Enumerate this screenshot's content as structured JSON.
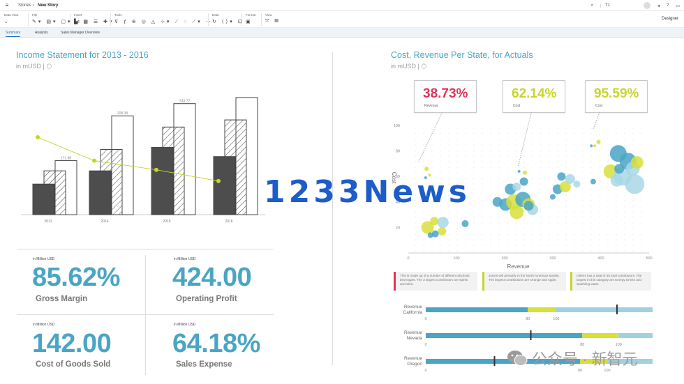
{
  "app": {
    "breadcrumb": [
      "Stories",
      "New Story"
    ],
    "search_value": "T1",
    "designer_label": "Designer"
  },
  "toolbar": {
    "groups": [
      {
        "label": "Data View"
      },
      {
        "label": "File"
      },
      {
        "label": "Insert"
      },
      {
        "label": "Tools"
      },
      {
        "label": "Data"
      },
      {
        "label": "Format"
      },
      {
        "label": "View"
      }
    ]
  },
  "tabs": [
    "Summary",
    "Analysis",
    "Sales Manager Overview"
  ],
  "income": {
    "title": "Income Statement for 2013 - 2016",
    "subtitle": "in mUSD |",
    "chart_data": {
      "type": "bar",
      "categories": [
        "2013",
        "2014",
        "2015",
        "2016"
      ],
      "bar_labels": [
        "171.88",
        "208.38",
        "243.72",
        ""
      ],
      "series": [
        {
          "values": [
            30,
            43,
            66,
            57
          ]
        },
        {
          "values": [
            43,
            64,
            86,
            93
          ]
        },
        {
          "values": [
            53,
            97,
            109,
            115
          ]
        }
      ],
      "line": [
        76,
        53,
        44,
        33
      ],
      "ylim": [
        0,
        130
      ]
    }
  },
  "kpis": [
    {
      "unit": "in Million USD",
      "value": "85.62%",
      "label": "Gross Margin"
    },
    {
      "unit": "in Million USD",
      "value": "424.00",
      "label": "Operating Profit"
    },
    {
      "unit": "in Million USD",
      "value": "142.00",
      "label": "Cost of Goods Sold"
    },
    {
      "unit": "in Million USD",
      "value": "64.18%",
      "label": "Sales Expense"
    }
  ],
  "cost_revenue": {
    "title": "Cost, Revenue Per State, for Actuals",
    "subtitle": "in mUSD |",
    "callouts": [
      {
        "value": "38.73%",
        "label": "Revenue",
        "color": "#e0335a"
      },
      {
        "value": "62.14%",
        "label": "Cost",
        "color": "#c8d42c"
      },
      {
        "value": "95.59%",
        "label": "Cost",
        "color": "#c8d42c"
      }
    ],
    "chart_data": {
      "type": "scatter",
      "xlabel": "Revenue",
      "ylabel": "Cost",
      "xticks": [
        "0",
        "100",
        "200",
        "300",
        "400",
        "500"
      ],
      "yticks": [
        "20",
        "40",
        "60",
        "80",
        "100"
      ],
      "xlim": [
        0,
        500
      ],
      "ylim": [
        0,
        100
      ],
      "points": [
        {
          "x": 40,
          "y": 20,
          "r": 9,
          "c": "#d7df3a"
        },
        {
          "x": 70,
          "y": 17,
          "r": 6,
          "c": "#d7df3a"
        },
        {
          "x": 72,
          "y": 24,
          "r": 8,
          "c": "#a8d7e6"
        },
        {
          "x": 54,
          "y": 25,
          "r": 6,
          "c": "#d7df3a"
        },
        {
          "x": 56,
          "y": 15,
          "r": 5,
          "c": "#4aa5c5"
        },
        {
          "x": 118,
          "y": 23,
          "r": 5,
          "c": "#4aa5c5"
        },
        {
          "x": 46,
          "y": 14,
          "r": 4,
          "c": "#4aa5c5"
        },
        {
          "x": 38,
          "y": 66,
          "r": 3,
          "c": "#d7df3a"
        },
        {
          "x": 44,
          "y": 61,
          "r": 2,
          "c": "#d7df3a"
        },
        {
          "x": 36,
          "y": 59,
          "r": 2,
          "c": "#4aa5c5"
        },
        {
          "x": 185,
          "y": 40,
          "r": 7,
          "c": "#4aa5c5"
        },
        {
          "x": 202,
          "y": 38,
          "r": 9,
          "c": "#4aa5c5"
        },
        {
          "x": 219,
          "y": 40,
          "r": 11,
          "c": "#d7df3a"
        },
        {
          "x": 225,
          "y": 32,
          "r": 10,
          "c": "#d7df3a"
        },
        {
          "x": 238,
          "y": 42,
          "r": 11,
          "c": "#4aa5c5"
        },
        {
          "x": 250,
          "y": 38,
          "r": 9,
          "c": "#d7df3a"
        },
        {
          "x": 258,
          "y": 34,
          "r": 8,
          "c": "#a8d7e6"
        },
        {
          "x": 212,
          "y": 50,
          "r": 8,
          "c": "#4aa5c5"
        },
        {
          "x": 225,
          "y": 52,
          "r": 6,
          "c": "#a8d7e6"
        },
        {
          "x": 240,
          "y": 56,
          "r": 6,
          "c": "#4aa5c5"
        },
        {
          "x": 250,
          "y": 37,
          "r": 7,
          "c": "#4aa5c5"
        },
        {
          "x": 242,
          "y": 63,
          "r": 3,
          "c": "#d7df3a"
        },
        {
          "x": 230,
          "y": 64,
          "r": 2,
          "c": "#4aa5c5"
        },
        {
          "x": 310,
          "y": 50,
          "r": 7,
          "c": "#4aa5c5"
        },
        {
          "x": 326,
          "y": 52,
          "r": 8,
          "c": "#d7df3a"
        },
        {
          "x": 336,
          "y": 58,
          "r": 7,
          "c": "#a8d7e6"
        },
        {
          "x": 318,
          "y": 60,
          "r": 6,
          "c": "#4aa5c5"
        },
        {
          "x": 350,
          "y": 54,
          "r": 5,
          "c": "#a8d7e6"
        },
        {
          "x": 300,
          "y": 44,
          "r": 4,
          "c": "#4aa5c5"
        },
        {
          "x": 384,
          "y": 56,
          "r": 4,
          "c": "#4aa5c5"
        },
        {
          "x": 420,
          "y": 64,
          "r": 10,
          "c": "#d7df3a"
        },
        {
          "x": 445,
          "y": 60,
          "r": 13,
          "c": "#a8d7e6"
        },
        {
          "x": 456,
          "y": 72,
          "r": 12,
          "c": "#4aa5c5"
        },
        {
          "x": 466,
          "y": 66,
          "r": 10,
          "c": "#a8d7e6"
        },
        {
          "x": 436,
          "y": 78,
          "r": 12,
          "c": "#4aa5c5"
        },
        {
          "x": 433,
          "y": 57,
          "r": 9,
          "c": "#a8d7e6"
        },
        {
          "x": 438,
          "y": 66,
          "r": 7,
          "c": "#4aa5c5"
        },
        {
          "x": 475,
          "y": 71,
          "r": 9,
          "c": "#d7df3a"
        },
        {
          "x": 470,
          "y": 54,
          "r": 14,
          "c": "#a8d7e6"
        },
        {
          "x": 395,
          "y": 87,
          "r": 3,
          "c": "#d7df3a"
        },
        {
          "x": 380,
          "y": 84,
          "r": 2,
          "c": "#4aa5c5"
        },
        {
          "x": 387,
          "y": 84,
          "r": 2,
          "c": "#d7df3a"
        }
      ]
    },
    "notes": [
      {
        "text": "This is made up of a number of different alcoholic beverages. The 3 largest contributors are spirits and wine.",
        "color": "#e0335a"
      },
      {
        "text": "Juices sell primarily in the North American Market. The largest contributions are Orange and Apple.",
        "color": "#c8d42c"
      },
      {
        "text": "Others has a total of 40 total contributors. The largest in this category are Energy Drinks and Sparkling water.",
        "color": "#c8d42c"
      }
    ],
    "bullets": [
      {
        "label1": "Revenue",
        "label2": "California",
        "bands": [
          45,
          12,
          43
        ],
        "marker": 84,
        "ticks": [
          "0",
          "80",
          "100"
        ]
      },
      {
        "label1": "Revenue",
        "label2": "Nevada",
        "bands": [
          69,
          16,
          15
        ],
        "marker": 46,
        "ticks": [
          "0",
          "80",
          "100"
        ]
      },
      {
        "label1": "Revenue",
        "label2": "Oregon",
        "bands": [
          68,
          12,
          20
        ],
        "marker": 30,
        "ticks": [
          "0",
          "80",
          "100"
        ]
      }
    ]
  },
  "watermark": "1233News",
  "wechat_text": "公众号 · 新智元"
}
